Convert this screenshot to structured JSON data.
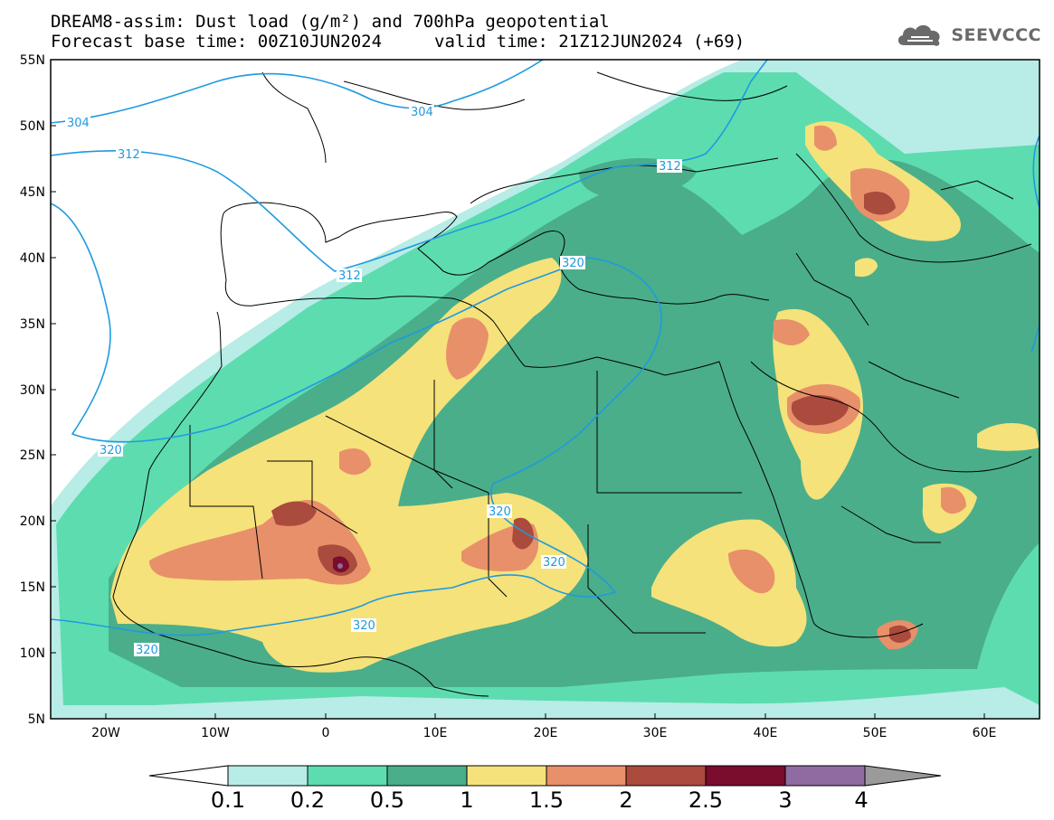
{
  "header": {
    "title_line1": "DREAM8-assim: Dust load (g/m²) and 700hPa geopotential",
    "base_time": "Forecast base time: 00Z10JUN2024",
    "valid_time": "valid time: 21Z12JUN2024 (+69)",
    "logo_text": "SEEVCCC"
  },
  "axes": {
    "lat_labels": [
      "55N",
      "50N",
      "45N",
      "40N",
      "35N",
      "30N",
      "25N",
      "20N",
      "15N",
      "10N",
      "5N"
    ],
    "lon_labels": [
      "20W",
      "10W",
      "0",
      "10E",
      "20E",
      "30E",
      "40E",
      "50E",
      "60E"
    ]
  },
  "contours": {
    "labels": [
      "304",
      "304",
      "312",
      "312",
      "312",
      "320",
      "320",
      "320",
      "320",
      "320",
      "320"
    ]
  },
  "colorbar": {
    "labels": [
      "0.1",
      "0.2",
      "0.5",
      "1",
      "1.5",
      "2",
      "2.5",
      "3",
      "4"
    ],
    "colors": [
      "#b8ece6",
      "#5ddcb0",
      "#4aae8a",
      "#f5e27a",
      "#e8906a",
      "#aa4b3d",
      "#7a0c2e",
      "#8e6ba0",
      "#9a9a9a"
    ]
  },
  "colors": {
    "land_blank": "#ffffff",
    "contour": "#1f9ae0",
    "border": "#000000"
  }
}
